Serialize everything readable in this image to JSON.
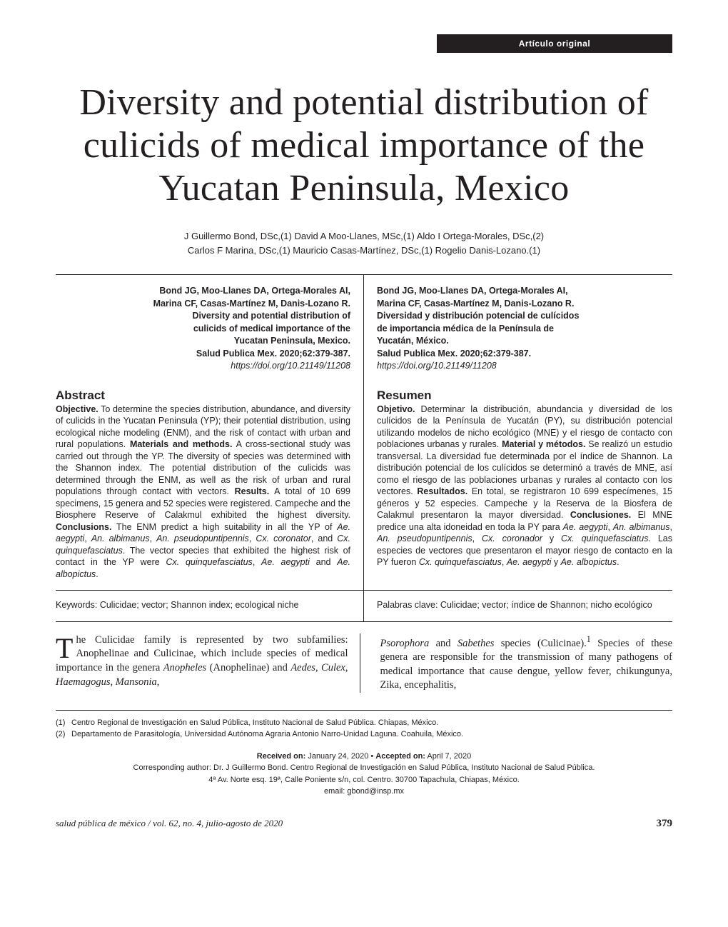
{
  "tag": "Artículo original",
  "title": "Diversity and potential distribution of culicids of medical importance of the Yucatan Peninsula, Mexico",
  "authors_line1": "J Guillermo Bond, DSc,(1) David A Moo-Llanes, MSc,(1) Aldo I Ortega-Morales, DSc,(2)",
  "authors_line2": "Carlos F Marina, DSc,(1) Mauricio Casas-Martínez, DSc,(1) Rogelio Danis-Lozano.(1)",
  "cite_left": {
    "authors": "Bond JG, Moo-Llanes DA, Ortega-Morales AI,",
    "authors2": "Marina CF, Casas-Martínez M, Danis-Lozano R.",
    "title1": "Diversity and potential distribution of",
    "title2": "culicids of medical importance of the",
    "title3": "Yucatan Peninsula, Mexico.",
    "journal": "Salud Publica Mex. 2020;62:379-387.",
    "doi": "https://doi.org/10.21149/11208"
  },
  "cite_right": {
    "authors": "Bond JG, Moo-Llanes DA, Ortega-Morales AI,",
    "authors2": "Marina CF, Casas-Martínez M, Danis-Lozano R.",
    "title1": "Diversidad y distribución potencial de culícidos",
    "title2": "de importancia médica de la Península de",
    "title3": "Yucatán, México.",
    "journal": "Salud Publica Mex. 2020;62:379-387.",
    "doi": "https://doi.org/10.21149/11208"
  },
  "abs_left_head": "Abstract",
  "abs_left_body": "<b>Objective.</b> To determine the species distribution, abundance, and diversity of culicids in the Yucatan Peninsula (YP); their potential distribution, using ecological niche modeling (ENM), and the risk of contact with urban and rural populations. <b>Materials and methods.</b> A cross-sectional study was carried out through the YP. The diversity of species was determined with the Shannon index. The potential distribution of the culicids was determined through the ENM, as well as the risk of urban and rural populations through contact with vectors. <b>Results.</b> A total of 10 699 specimens, 15 genera and 52 species were registered. Campeche and the Biosphere Reserve of Calakmul exhibited the highest diversity. <b>Conclusions.</b> The ENM predict a high suitability in all the YP of <i>Ae. aegypti</i>, <i>An. albimanus</i>, <i>An. pseudopuntipennis</i>, <i>Cx. coronator</i>, and <i>Cx. quinquefasciatus</i>. The vector species that exhibited the highest risk of contact in the YP were <i>Cx. quinquefasciatus</i>, <i>Ae. aegypti</i> and <i>Ae. albopictus</i>.",
  "keywords_left": "Keywords: Culicidae; vector; Shannon index; ecological niche",
  "abs_right_head": "Resumen",
  "abs_right_body": "<b>Objetivo.</b> Determinar la distribución, abundancia y diversidad de los culícidos de la Península de Yucatán (PY), su distribución potencial utilizando modelos de nicho ecológico (MNE) y el riesgo de contacto con poblaciones urbanas y rurales. <b>Material y métodos.</b> Se realizó un estudio transversal. La diversidad fue determinada por el índice de Shannon. La distribución potencial de los culícidos se determinó a través de MNE, así como el riesgo de las poblaciones urbanas y rurales al contacto con los vectores. <b>Resultados.</b> En total, se registraron 10 699 especímenes, 15 géneros y 52 especies. Campeche y la Reserva de la Biosfera de Calakmul presentaron la mayor diversidad. <b>Conclusiones.</b> El MNE predice una alta idoneidad en toda la PY para <i>Ae. aegypti</i>, <i>An. albimanus</i>, <i>An. pseudopuntipennis</i>, <i>Cx. coronador</i> y <i>Cx. quinquefasciatus</i>. Las especies de vectores que presentaron el mayor riesgo de contacto en la PY fueron <i>Cx. quinquefasciatus</i>, <i>Ae. aegypti</i> y <i>Ae. albopictus</i>.",
  "keywords_right": "Palabras clave: Culicidae; vector; índice de Shannon; nicho ecológico",
  "body_left": "he Culicidae family is represented by two subfamilies: Anophelinae and Culicinae, which include species of medical importance in the genera <i>Anopheles</i> (Anophelinae) and <i>Aedes</i>, <i>Culex</i>, <i>Haemagogus</i>, <i>Mansonia</i>,",
  "body_right": "<i>Psorophora</i> and <i>Sabethes</i> species (Culicinae).<sup>1</sup> Species of these genera are responsible for the transmission of many pathogens of medical importance that cause dengue, yellow fever, chikungunya, Zika, encephalitis,",
  "affil": [
    "Centro Regional de Investigación en Salud Pública, Instituto Nacional de Salud Pública. Chiapas, México.",
    "Departamento de Parasitología, Universidad Autónoma Agraria Antonio Narro-Unidad Laguna. Coahuila, México."
  ],
  "received_line1_a": "Received on:",
  "received_line1_b": " January 24, 2020 • ",
  "received_line1_c": "Accepted on:",
  "received_line1_d": " April 7, 2020",
  "received_line2": "Corresponding author: Dr. J Guillermo Bond. Centro Regional de Investigación en Salud Pública, Instituto Nacional de Salud Pública.",
  "received_line3": "4ª Av. Norte esq. 19ª, Calle Poniente s/n, col. Centro. 30700 Tapachula, Chiapas, México.",
  "received_line4": "email: gbond@insp.mx",
  "footer_journal": "salud pública de méxico / vol. 62, no. 4, julio-agosto de 2020",
  "footer_page": "379"
}
